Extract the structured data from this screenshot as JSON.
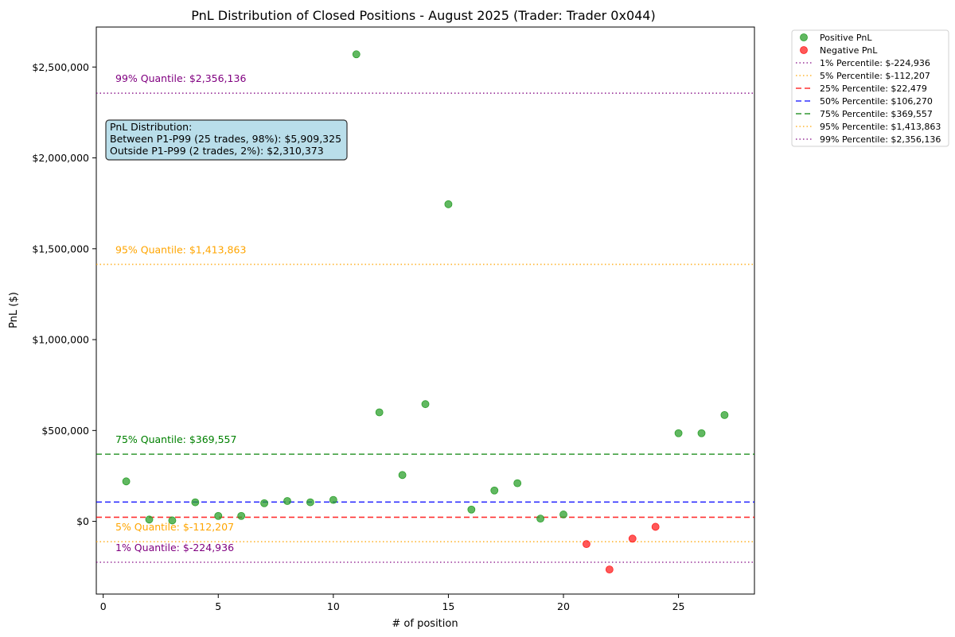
{
  "chart_data": {
    "type": "scatter",
    "title": "PnL Distribution of Closed Positions - August 2025 (Trader: Trader 0x044)",
    "xlabel": "# of position",
    "ylabel": "PnL ($)",
    "xlim": [
      -0.3,
      28.3
    ],
    "ylim": [
      -400000,
      2720000
    ],
    "x_ticks": [
      0,
      5,
      10,
      15,
      20,
      25
    ],
    "y_ticks": [
      0,
      500000,
      1000000,
      1500000,
      2000000,
      2500000
    ],
    "y_tick_labels": [
      "$0",
      "$500,000",
      "$1,000,000",
      "$1,500,000",
      "$2,000,000",
      "$2,500,000"
    ],
    "series": [
      {
        "name": "Positive PnL",
        "color": "#2ca02c",
        "points": [
          [
            1,
            220000
          ],
          [
            2,
            10000
          ],
          [
            3,
            5000
          ],
          [
            4,
            105000
          ],
          [
            5,
            30000
          ],
          [
            6,
            30000
          ],
          [
            7,
            100000
          ],
          [
            8,
            112000
          ],
          [
            9,
            105000
          ],
          [
            10,
            118000
          ],
          [
            11,
            2570000
          ],
          [
            12,
            600000
          ],
          [
            13,
            255000
          ],
          [
            14,
            645000
          ],
          [
            15,
            1745000
          ],
          [
            16,
            65000
          ],
          [
            17,
            170000
          ],
          [
            18,
            210000
          ],
          [
            19,
            15000
          ],
          [
            20,
            38000
          ],
          [
            25,
            485000
          ],
          [
            26,
            485000
          ],
          [
            27,
            585000
          ]
        ]
      },
      {
        "name": "Negative PnL",
        "color": "#ff2020",
        "points": [
          [
            21,
            -125000
          ],
          [
            22,
            -265000
          ],
          [
            23,
            -95000
          ],
          [
            24,
            -30000
          ]
        ]
      }
    ],
    "quantile_lines": [
      {
        "legend": "1% Percentile: $-224,936",
        "label": "1% Quantile: $-224,936",
        "value": -224936,
        "color": "#800080",
        "dash": "dotted",
        "labeled": true
      },
      {
        "legend": "5% Percentile: $-112,207",
        "label": "5% Quantile: $-112,207",
        "value": -112207,
        "color": "#ffa500",
        "dash": "dotted",
        "labeled": true
      },
      {
        "legend": "25% Percentile: $22,479",
        "label": "",
        "value": 22479,
        "color": "#ff0000",
        "dash": "dashed",
        "labeled": false
      },
      {
        "legend": "50% Percentile: $106,270",
        "label": "",
        "value": 106270,
        "color": "#0000ff",
        "dash": "dashed",
        "labeled": false
      },
      {
        "legend": "75% Percentile: $369,557",
        "label": "75% Quantile: $369,557",
        "value": 369557,
        "color": "#008000",
        "dash": "dashed",
        "labeled": true
      },
      {
        "legend": "95% Percentile: $1,413,863",
        "label": "95% Quantile: $1,413,863",
        "value": 1413863,
        "color": "#ffa500",
        "dash": "dotted",
        "labeled": true
      },
      {
        "legend": "99% Percentile: $2,356,136",
        "label": "99% Quantile: $2,356,136",
        "value": 2356136,
        "color": "#800080",
        "dash": "dotted",
        "labeled": true
      }
    ],
    "info_box": {
      "lines": [
        "PnL Distribution:",
        "Between P1-P99 (25 trades, 98%): $5,909,325",
        "Outside P1-P99 (2 trades, 2%): $2,310,373"
      ],
      "background": "#add8e6"
    },
    "legend_position": "outside-top-right",
    "grid": false
  }
}
